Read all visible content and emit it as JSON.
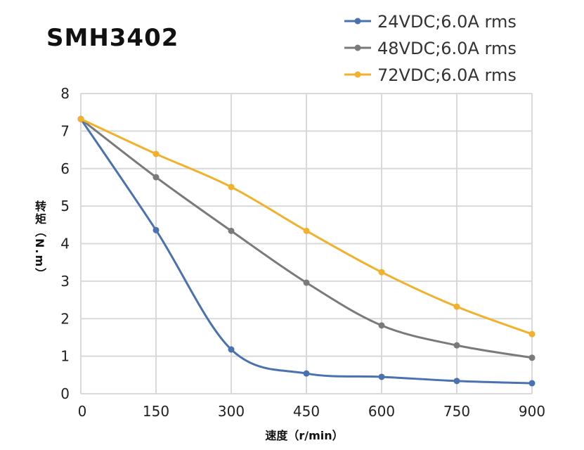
{
  "chart_data": {
    "type": "line",
    "title": "SMH3402",
    "xlabel": "速度（r/min）",
    "ylabel": "转矩（N.m）",
    "x": [
      0,
      150,
      300,
      450,
      600,
      750,
      900
    ],
    "xlim": [
      0,
      900
    ],
    "ylim": [
      0,
      8
    ],
    "xticks": [
      "0",
      "150",
      "300",
      "450",
      "600",
      "750",
      "900"
    ],
    "yticks": [
      "0",
      "1",
      "2",
      "3",
      "4",
      "5",
      "6",
      "7",
      "8"
    ],
    "grid": true,
    "legend_position": "top-right",
    "series": [
      {
        "name": "24VDC;6.0A rms",
        "color": "#4a72b0",
        "values": [
          7.32,
          4.36,
          1.18,
          0.54,
          0.45,
          0.34,
          0.28
        ]
      },
      {
        "name": "48VDC;6.0A rms",
        "color": "#7a7a7a",
        "values": [
          7.32,
          5.77,
          4.34,
          2.96,
          1.82,
          1.29,
          0.96
        ]
      },
      {
        "name": "72VDC;6.0A rms",
        "color": "#f2b12c",
        "values": [
          7.32,
          6.39,
          5.51,
          4.34,
          3.24,
          2.32,
          1.59
        ]
      }
    ]
  }
}
